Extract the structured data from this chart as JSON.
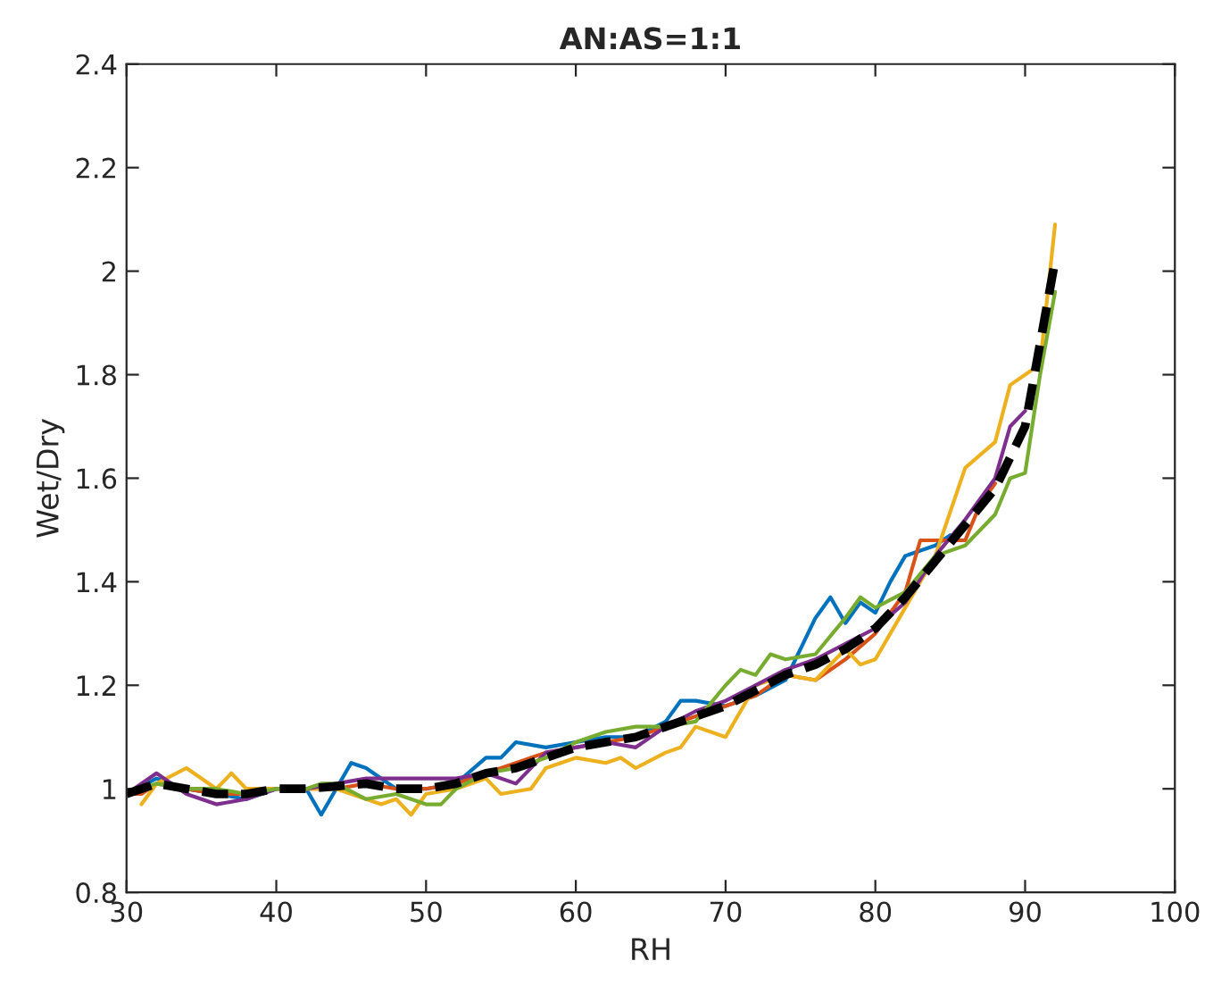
{
  "chart_data": {
    "type": "line",
    "title": "AN:AS=1:1",
    "xlabel": "RH",
    "ylabel": "Wet/Dry",
    "xlim": [
      30,
      100
    ],
    "xticks": [
      30,
      40,
      50,
      60,
      70,
      80,
      90,
      100
    ],
    "ylim": [
      0.8,
      2.4
    ],
    "yticks": [
      0.8,
      1,
      1.2,
      1.4,
      1.6,
      1.8,
      2,
      2.2,
      2.4
    ],
    "series": [
      {
        "color": "#0072bd",
        "x": [
          30,
          32,
          34,
          36,
          38,
          40,
          42,
          43,
          44,
          45,
          46,
          48,
          50,
          52,
          54,
          55,
          56,
          58,
          60,
          62,
          64,
          66,
          67,
          68,
          70,
          72,
          74,
          76,
          77,
          78,
          79,
          80,
          81,
          82,
          84,
          85
        ],
        "values": [
          0.99,
          1.02,
          1.0,
          0.99,
          0.98,
          1.0,
          1.0,
          0.95,
          1.0,
          1.05,
          1.04,
          1.0,
          1.0,
          1.01,
          1.06,
          1.06,
          1.09,
          1.08,
          1.09,
          1.1,
          1.1,
          1.13,
          1.17,
          1.17,
          1.16,
          1.18,
          1.21,
          1.33,
          1.37,
          1.32,
          1.36,
          1.34,
          1.4,
          1.45,
          1.47,
          1.49
        ]
      },
      {
        "color": "#d95319",
        "x": [
          30,
          31,
          32,
          34,
          36,
          38,
          40,
          42,
          44,
          46,
          48,
          50,
          52,
          54,
          56,
          58,
          60,
          62,
          64,
          66,
          68,
          70,
          72,
          74,
          76,
          78,
          80,
          82,
          83,
          85,
          86,
          87,
          88
        ],
        "values": [
          0.99,
          0.99,
          1.01,
          1.0,
          0.99,
          0.99,
          1.0,
          1.0,
          1.0,
          1.01,
          1.0,
          1.0,
          1.01,
          1.03,
          1.05,
          1.07,
          1.08,
          1.09,
          1.1,
          1.12,
          1.14,
          1.16,
          1.18,
          1.22,
          1.21,
          1.25,
          1.3,
          1.38,
          1.48,
          1.48,
          1.48,
          1.55,
          1.59
        ]
      },
      {
        "color": "#edb120",
        "x": [
          31,
          32,
          34,
          36,
          37,
          38,
          40,
          42,
          44,
          46,
          47,
          48,
          49,
          50,
          52,
          54,
          55,
          57,
          58,
          60,
          62,
          63,
          64,
          66,
          67,
          68,
          70,
          71,
          72,
          74,
          76,
          78,
          79,
          80,
          82,
          84,
          86,
          88,
          89,
          91,
          92
        ],
        "values": [
          0.97,
          1.01,
          1.04,
          1.0,
          1.03,
          1.0,
          1.0,
          1.0,
          1.0,
          0.98,
          0.97,
          0.98,
          0.95,
          0.99,
          1.0,
          1.02,
          0.99,
          1.0,
          1.04,
          1.06,
          1.05,
          1.06,
          1.04,
          1.07,
          1.08,
          1.12,
          1.1,
          1.15,
          1.2,
          1.22,
          1.21,
          1.27,
          1.24,
          1.25,
          1.35,
          1.45,
          1.62,
          1.67,
          1.78,
          1.82,
          2.09
        ]
      },
      {
        "color": "#7e2f8e",
        "x": [
          30,
          32,
          34,
          36,
          38,
          40,
          42,
          44,
          46,
          48,
          50,
          52,
          54,
          56,
          58,
          60,
          62,
          64,
          66,
          68,
          70,
          72,
          74,
          76,
          78,
          80,
          82,
          84,
          86,
          88,
          89,
          90
        ],
        "values": [
          0.99,
          1.03,
          0.99,
          0.97,
          0.98,
          1.0,
          1.0,
          1.01,
          1.02,
          1.02,
          1.02,
          1.02,
          1.03,
          1.01,
          1.07,
          1.08,
          1.09,
          1.08,
          1.12,
          1.15,
          1.17,
          1.2,
          1.23,
          1.25,
          1.28,
          1.31,
          1.36,
          1.45,
          1.52,
          1.6,
          1.7,
          1.73
        ]
      },
      {
        "color": "#77ac30",
        "x": [
          30,
          32,
          34,
          36,
          38,
          40,
          42,
          43,
          44,
          46,
          48,
          50,
          51,
          52,
          54,
          56,
          58,
          60,
          62,
          64,
          66,
          68,
          70,
          71,
          72,
          73,
          74,
          76,
          78,
          79,
          80,
          82,
          84,
          86,
          88,
          89,
          90,
          91,
          92
        ],
        "values": [
          0.99,
          1.01,
          1.0,
          1.0,
          0.99,
          1.0,
          1.0,
          1.01,
          1.01,
          0.98,
          0.99,
          0.97,
          0.97,
          1.0,
          1.03,
          1.04,
          1.06,
          1.09,
          1.11,
          1.12,
          1.12,
          1.13,
          1.2,
          1.23,
          1.22,
          1.26,
          1.25,
          1.26,
          1.33,
          1.37,
          1.35,
          1.38,
          1.45,
          1.47,
          1.53,
          1.6,
          1.61,
          1.8,
          1.96
        ]
      },
      {
        "color": "#000000",
        "line_style": "dashed",
        "x": [
          30,
          32,
          34,
          36,
          38,
          40,
          42,
          44,
          46,
          48,
          50,
          52,
          54,
          56,
          58,
          60,
          62,
          64,
          66,
          68,
          70,
          72,
          74,
          76,
          78,
          80,
          82,
          84,
          86,
          88,
          90,
          92
        ],
        "values": [
          0.99,
          1.01,
          1.0,
          0.99,
          0.99,
          1.0,
          1.0,
          1.005,
          1.01,
          1.0,
          1.0,
          1.01,
          1.03,
          1.04,
          1.06,
          1.08,
          1.09,
          1.1,
          1.12,
          1.14,
          1.16,
          1.19,
          1.22,
          1.24,
          1.27,
          1.31,
          1.37,
          1.44,
          1.51,
          1.58,
          1.7,
          2.02
        ]
      }
    ]
  }
}
